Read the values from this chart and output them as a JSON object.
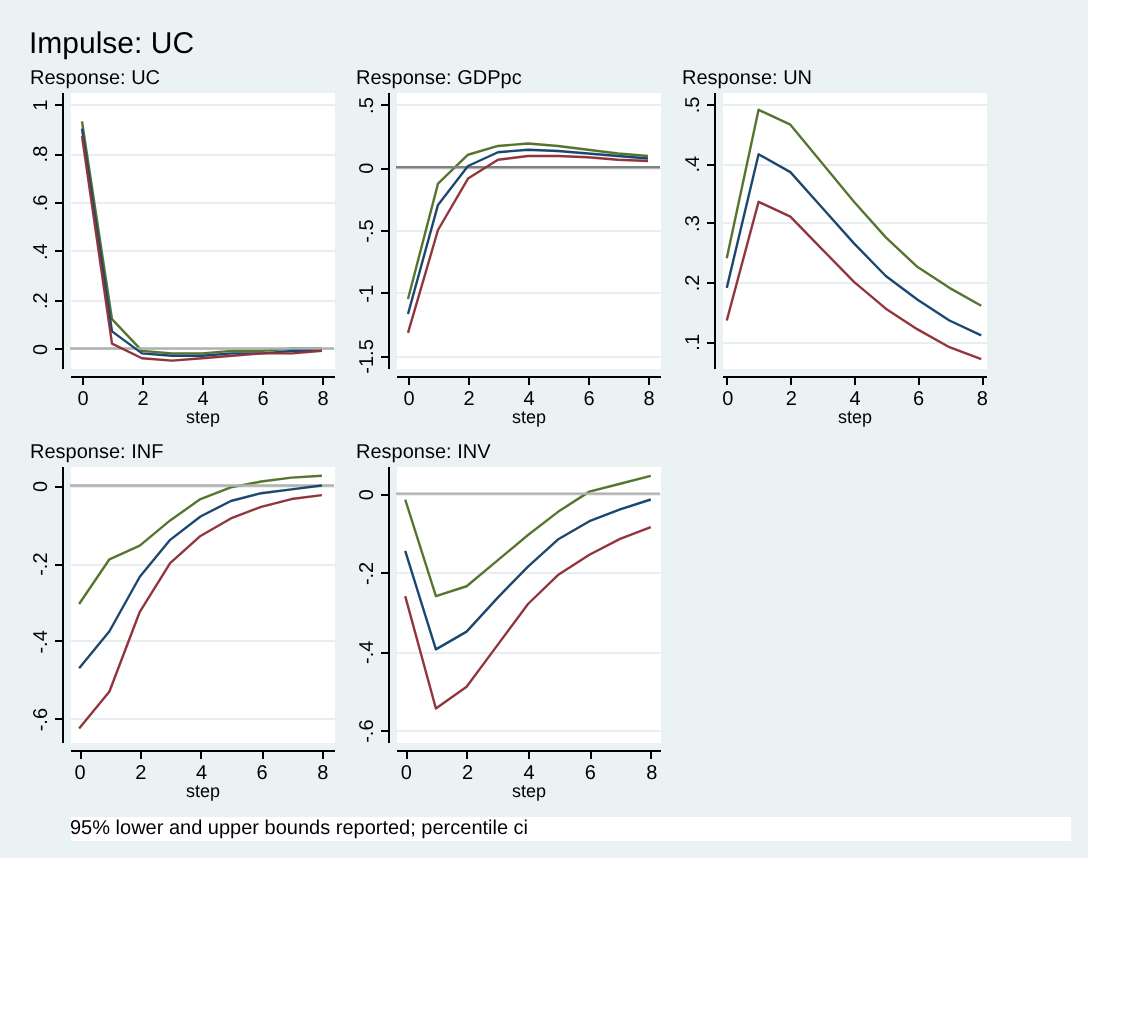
{
  "chart_data": [
    {
      "type": "line",
      "title": "Response: UC",
      "xlabel": "step",
      "x": [
        0,
        1,
        2,
        3,
        4,
        5,
        6,
        7,
        8
      ],
      "xlim": [
        -0.4,
        8.4
      ],
      "xticks": [
        0,
        2,
        4,
        6,
        8
      ],
      "ylim": [
        -0.08,
        1.05
      ],
      "yticks": [
        {
          "value": 0,
          "label": "0"
        },
        {
          "value": 0.2,
          "label": ".2"
        },
        {
          "value": 0.4,
          "label": ".4"
        },
        {
          "value": 0.6,
          "label": ".6"
        },
        {
          "value": 0.8,
          "label": ".8"
        },
        {
          "value": 1,
          "label": "1"
        }
      ],
      "grid": "y",
      "ref_lines": [
        {
          "axis": "y",
          "value": 0,
          "color": "#b0b0b0"
        }
      ],
      "series": [
        {
          "color": "#55752f",
          "values": [
            0.93,
            0.12,
            -0.01,
            -0.02,
            -0.02,
            -0.01,
            -0.01,
            0,
            0
          ]
        },
        {
          "color": "#1a476f",
          "values": [
            0.9,
            0.07,
            -0.02,
            -0.03,
            -0.03,
            -0.02,
            -0.02,
            -0.01,
            -0.01
          ]
        },
        {
          "color": "#90353b",
          "values": [
            0.87,
            0.02,
            -0.04,
            -0.05,
            -0.04,
            -0.03,
            -0.02,
            -0.02,
            -0.01
          ]
        }
      ]
    },
    {
      "type": "line",
      "title": "Response: GDPpc",
      "xlabel": "step",
      "x": [
        0,
        1,
        2,
        3,
        4,
        5,
        6,
        7,
        8
      ],
      "xlim": [
        -0.4,
        8.4
      ],
      "xticks": [
        0,
        2,
        4,
        6,
        8
      ],
      "ylim": [
        -1.6,
        0.6
      ],
      "yticks": [
        {
          "value": -1.5,
          "label": "-1.5"
        },
        {
          "value": -1,
          "label": "-1"
        },
        {
          "value": -0.5,
          "label": "-.5"
        },
        {
          "value": 0,
          "label": "0"
        },
        {
          "value": 0.5,
          "label": ".5"
        }
      ],
      "grid": "y",
      "ref_lines": [
        {
          "axis": "y",
          "value": 0,
          "color": "#808080"
        }
      ],
      "series": [
        {
          "color": "#55752f",
          "values": [
            -1.05,
            -0.13,
            0.1,
            0.17,
            0.19,
            0.17,
            0.14,
            0.11,
            0.09
          ]
        },
        {
          "color": "#1a476f",
          "values": [
            -1.17,
            -0.3,
            0.01,
            0.12,
            0.14,
            0.13,
            0.11,
            0.09,
            0.07
          ]
        },
        {
          "color": "#90353b",
          "values": [
            -1.32,
            -0.5,
            -0.09,
            0.06,
            0.09,
            0.09,
            0.08,
            0.06,
            0.05
          ]
        }
      ]
    },
    {
      "type": "line",
      "title": "Response: UN",
      "xlabel": "step",
      "x": [
        0,
        1,
        2,
        3,
        4,
        5,
        6,
        7,
        8
      ],
      "xlim": [
        -0.15,
        8.15
      ],
      "xticks": [
        0,
        2,
        4,
        6,
        8
      ],
      "ylim": [
        0.055,
        0.52
      ],
      "yticks": [
        {
          "value": 0.1,
          "label": ".1"
        },
        {
          "value": 0.2,
          "label": ".2"
        },
        {
          "value": 0.3,
          "label": ".3"
        },
        {
          "value": 0.4,
          "label": ".4"
        },
        {
          "value": 0.5,
          "label": ".5"
        }
      ],
      "grid": "y",
      "series": [
        {
          "color": "#55752f",
          "values": [
            0.24,
            0.49,
            0.465,
            0.4,
            0.335,
            0.275,
            0.225,
            0.19,
            0.16
          ]
        },
        {
          "color": "#1a476f",
          "values": [
            0.19,
            0.415,
            0.385,
            0.325,
            0.265,
            0.21,
            0.17,
            0.135,
            0.11
          ]
        },
        {
          "color": "#90353b",
          "values": [
            0.135,
            0.335,
            0.31,
            0.255,
            0.2,
            0.155,
            0.12,
            0.09,
            0.07
          ]
        }
      ]
    },
    {
      "type": "line",
      "title": "Response: INF",
      "xlabel": "step",
      "x": [
        0,
        1,
        2,
        3,
        4,
        5,
        6,
        7,
        8
      ],
      "xlim": [
        -0.3,
        8.4
      ],
      "xticks": [
        0,
        2,
        4,
        6,
        8
      ],
      "ylim": [
        -0.66,
        0.05
      ],
      "yticks": [
        {
          "value": -0.6,
          "label": "-.6"
        },
        {
          "value": -0.4,
          "label": "-.4"
        },
        {
          "value": -0.2,
          "label": "-.2"
        },
        {
          "value": 0,
          "label": "0"
        }
      ],
      "grid": "y",
      "ref_lines": [
        {
          "axis": "y",
          "value": 0,
          "color": "#b0b0b0"
        }
      ],
      "series": [
        {
          "color": "#55752f",
          "values": [
            -0.305,
            -0.19,
            -0.155,
            -0.09,
            -0.035,
            -0.005,
            0.01,
            0.02,
            0.025
          ]
        },
        {
          "color": "#1a476f",
          "values": [
            -0.47,
            -0.375,
            -0.235,
            -0.14,
            -0.08,
            -0.04,
            -0.02,
            -0.01,
            0
          ]
        },
        {
          "color": "#90353b",
          "values": [
            -0.625,
            -0.53,
            -0.325,
            -0.2,
            -0.13,
            -0.085,
            -0.055,
            -0.035,
            -0.025
          ]
        }
      ]
    },
    {
      "type": "line",
      "title": "Response: INV",
      "xlabel": "step",
      "x": [
        0,
        1,
        2,
        3,
        4,
        5,
        6,
        7,
        8
      ],
      "xlim": [
        -0.3,
        8.3
      ],
      "xticks": [
        0,
        2,
        4,
        6,
        8
      ],
      "ylim": [
        -0.63,
        0.07
      ],
      "yticks": [
        {
          "value": -0.6,
          "label": "-.6"
        },
        {
          "value": -0.4,
          "label": "-.4"
        },
        {
          "value": -0.2,
          "label": "-.2"
        },
        {
          "value": 0,
          "label": "0"
        }
      ],
      "grid": "y",
      "ref_lines": [
        {
          "axis": "y",
          "value": 0,
          "color": "#b0b0b0"
        }
      ],
      "series": [
        {
          "color": "#55752f",
          "values": [
            -0.015,
            -0.26,
            -0.235,
            -0.17,
            -0.105,
            -0.045,
            0.005,
            0.025,
            0.045
          ]
        },
        {
          "color": "#1a476f",
          "values": [
            -0.145,
            -0.395,
            -0.35,
            -0.265,
            -0.185,
            -0.115,
            -0.07,
            -0.04,
            -0.015
          ]
        },
        {
          "color": "#90353b",
          "values": [
            -0.26,
            -0.545,
            -0.49,
            -0.385,
            -0.28,
            -0.205,
            -0.155,
            -0.115,
            -0.085
          ]
        }
      ]
    },
    {
      "type": "other",
      "title": "Impulse: UC",
      "annotations": [
        "95% lower and upper bounds reported; percentile ci"
      ]
    }
  ]
}
